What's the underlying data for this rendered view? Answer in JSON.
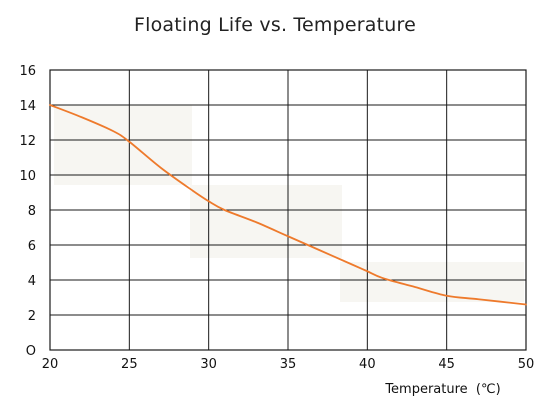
{
  "chart_data": {
    "type": "line",
    "title": "Floating Life vs. Temperature",
    "xlabel": "Temperature  (℃)",
    "ylabel": "",
    "xlim": [
      20,
      50
    ],
    "ylim": [
      0,
      16
    ],
    "x_ticks": [
      "20",
      "25",
      "30",
      "35",
      "40",
      "45",
      "50"
    ],
    "y_ticks": [
      "O",
      "2",
      "4",
      "6",
      "8",
      "10",
      "12",
      "14",
      "16"
    ],
    "grid": true,
    "series": [
      {
        "color": "#ee7a2c",
        "x": [
          20,
          22,
          24,
          25,
          27,
          29,
          30,
          31,
          33,
          35,
          37,
          39,
          40,
          41,
          43,
          45,
          47,
          50
        ],
        "y": [
          14,
          13.3,
          12.5,
          11.9,
          10.4,
          9.1,
          8.5,
          8.0,
          7.3,
          6.5,
          5.7,
          4.9,
          4.5,
          4.1,
          3.6,
          3.1,
          2.9,
          2.6
        ]
      }
    ]
  }
}
